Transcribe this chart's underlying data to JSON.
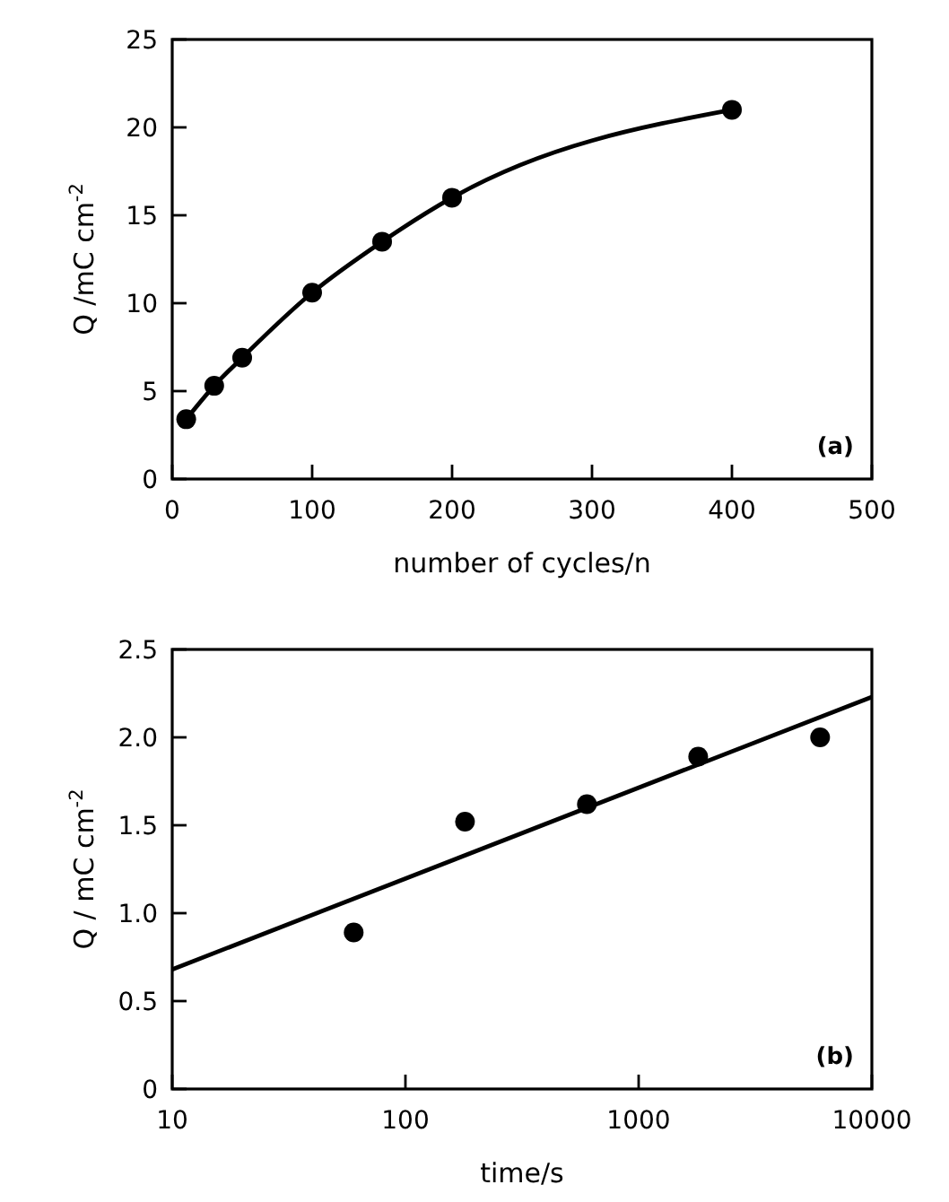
{
  "chart_data": [
    {
      "type": "scatter",
      "xlabel": "number of cycles/n",
      "ylabel": "Q /mC cm$^{-2}$",
      "annotations": [
        "(a)"
      ],
      "xlim": [
        0,
        500
      ],
      "ylim": [
        0,
        25
      ],
      "xticks": [
        0,
        100,
        200,
        300,
        400,
        500
      ],
      "yticks": [
        0,
        5,
        10,
        15,
        20,
        25
      ],
      "grid": false,
      "series": [
        {
          "type": "line",
          "color": "#000000",
          "marker": "none",
          "x": [
            10,
            30,
            50,
            100,
            150,
            200,
            400
          ],
          "values": [
            3.4,
            5.3,
            6.9,
            10.6,
            13.5,
            16,
            21
          ]
        },
        {
          "color": "#000000",
          "marker": "circle",
          "x": [
            10,
            30,
            50,
            100,
            150,
            200,
            400
          ],
          "values": [
            3.4,
            5.3,
            6.9,
            10.6,
            13.5,
            16,
            21
          ]
        }
      ]
    },
    {
      "type": "scatter",
      "xlabel": "time/s",
      "ylabel": "Q / mC cm$^{-2}$",
      "annotations": [
        "(b)"
      ],
      "log": "x",
      "xlim": [
        10,
        10000
      ],
      "ylim": [
        0,
        2.5
      ],
      "xticks": [
        10,
        100,
        1000,
        10000
      ],
      "yticks": [
        0,
        {
          "value": 0.5,
          "label": "0.5"
        },
        {
          "value": 1,
          "label": "1.0"
        },
        1.5,
        {
          "value": 2,
          "label": "2.0"
        },
        2.5
      ],
      "grid": false,
      "series": [
        {
          "type": "line",
          "color": "#000000",
          "marker": "none",
          "x": [
            10,
            10000
          ],
          "values": [
            0.68,
            2.23
          ]
        },
        {
          "color": "#000000",
          "marker": "circle",
          "x": [
            60,
            180,
            600,
            1800,
            6000
          ],
          "values": [
            0.89,
            1.52,
            1.62,
            1.89,
            2.0
          ]
        }
      ]
    }
  ]
}
